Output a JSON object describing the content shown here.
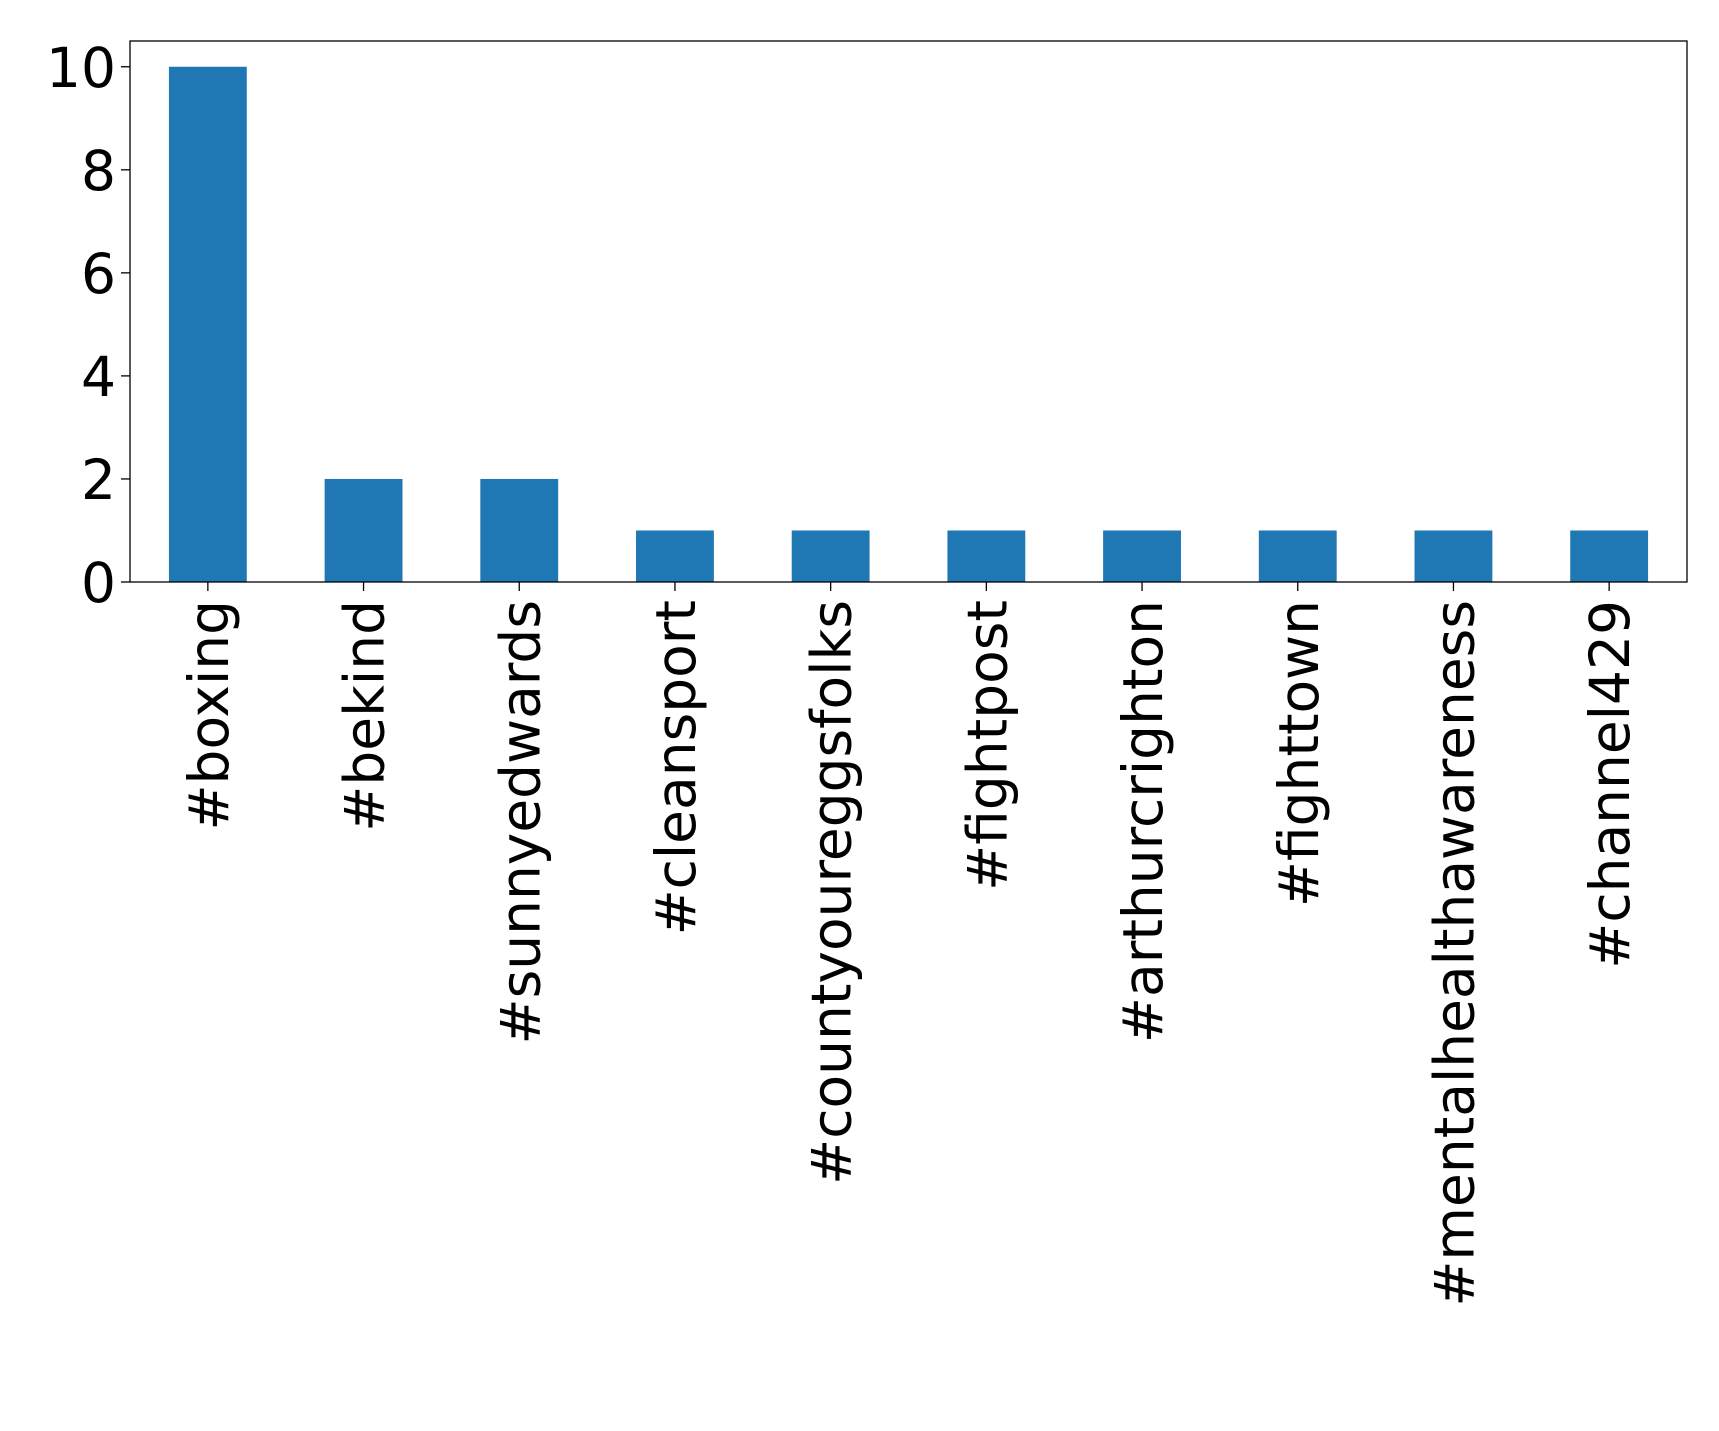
{
  "chart_data": {
    "type": "bar",
    "categories": [
      "#boxing",
      "#bekind",
      "#sunnyedwards",
      "#cleansport",
      "#countyoureggsfolks",
      "#fightpost",
      "#arthurcrighton",
      "#fighttown",
      "#mentalhealthawareness",
      "#channel429"
    ],
    "values": [
      10,
      2,
      2,
      1,
      1,
      1,
      1,
      1,
      1,
      1
    ],
    "color": "#1f77b4",
    "ylim": [
      0,
      10.5
    ],
    "yticks": [
      0,
      2,
      4,
      6,
      8,
      10
    ],
    "grid": false
  }
}
